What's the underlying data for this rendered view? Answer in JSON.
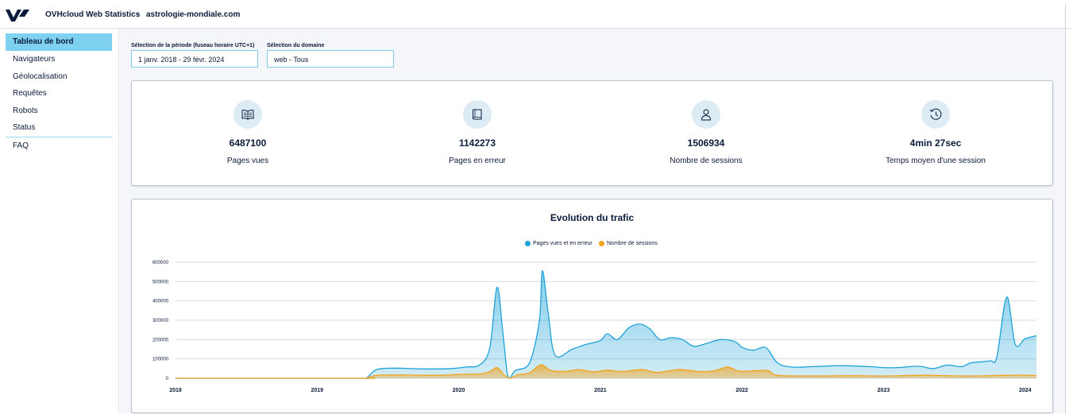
{
  "topbar": {
    "app_title": "OVHcloud Web Statistics",
    "separator": "-",
    "domain": "astrologie-mondiale.com"
  },
  "sidebar": {
    "items": [
      {
        "label": "Tableau de bord",
        "active": true
      },
      {
        "label": "Navigateurs",
        "active": false
      },
      {
        "label": "Géolocalisation",
        "active": false
      },
      {
        "label": "Requêtes",
        "active": false
      },
      {
        "label": "Robots",
        "active": false
      },
      {
        "label": "Status",
        "active": false
      },
      {
        "label": "FAQ",
        "active": false
      }
    ]
  },
  "filters": {
    "period_label": "Sélection de la période (fuseau horaire UTC+1)",
    "period_value": "1 janv. 2018 - 29 févr. 2024",
    "domain_label": "Sélection du domaine",
    "domain_value": "web - Tous"
  },
  "stats": [
    {
      "icon": "open-book-icon",
      "value": "6487100",
      "label": "Pages vues"
    },
    {
      "icon": "closed-book-icon",
      "value": "1142273",
      "label": "Pages en erreur"
    },
    {
      "icon": "person-icon",
      "value": "1506934",
      "label": "Nombre de sessions"
    },
    {
      "icon": "clock-history-icon",
      "value": "4min 27sec",
      "label": "Temps moyen d'une session"
    }
  ],
  "colors": {
    "accent": "#7fd1f0",
    "series_blue": "#1ea3d8",
    "series_orange": "#f2a21b"
  },
  "chart_data": {
    "type": "area",
    "title": "Evolution du trafic",
    "legend_position": "top-center",
    "grid": true,
    "ylim": [
      0,
      600000
    ],
    "yticks": [
      "0",
      "100000",
      "200000",
      "300000",
      "400000",
      "500000",
      "600000"
    ],
    "xticks": [
      "2018",
      "2019",
      "2020",
      "2021",
      "2022",
      "2023",
      "2024"
    ],
    "xlim": [
      2018.0,
      2024.08
    ],
    "series": [
      {
        "name": "Pages vues et en erreur",
        "color": "#1ea3d8",
        "points": [
          [
            2018.0,
            0
          ],
          [
            2019.3,
            0
          ],
          [
            2019.35,
            2000
          ],
          [
            2019.42,
            45000
          ],
          [
            2019.55,
            52000
          ],
          [
            2019.75,
            48000
          ],
          [
            2019.95,
            50000
          ],
          [
            2020.05,
            58000
          ],
          [
            2020.15,
            70000
          ],
          [
            2020.22,
            160000
          ],
          [
            2020.27,
            470000
          ],
          [
            2020.31,
            250000
          ],
          [
            2020.34,
            40000
          ],
          [
            2020.36,
            2000
          ],
          [
            2020.4,
            40000
          ],
          [
            2020.5,
            80000
          ],
          [
            2020.57,
            300000
          ],
          [
            2020.59,
            555000
          ],
          [
            2020.63,
            350000
          ],
          [
            2020.68,
            120000
          ],
          [
            2020.8,
            150000
          ],
          [
            2020.9,
            175000
          ],
          [
            2021.0,
            195000
          ],
          [
            2021.05,
            230000
          ],
          [
            2021.12,
            200000
          ],
          [
            2021.2,
            260000
          ],
          [
            2021.28,
            280000
          ],
          [
            2021.35,
            255000
          ],
          [
            2021.42,
            200000
          ],
          [
            2021.5,
            210000
          ],
          [
            2021.58,
            200000
          ],
          [
            2021.66,
            165000
          ],
          [
            2021.75,
            180000
          ],
          [
            2021.85,
            200000
          ],
          [
            2021.95,
            190000
          ],
          [
            2022.0,
            160000
          ],
          [
            2022.08,
            145000
          ],
          [
            2022.17,
            158000
          ],
          [
            2022.25,
            80000
          ],
          [
            2022.35,
            58000
          ],
          [
            2022.5,
            60000
          ],
          [
            2022.7,
            65000
          ],
          [
            2022.9,
            60000
          ],
          [
            2023.0,
            55000
          ],
          [
            2023.1,
            55000
          ],
          [
            2023.25,
            62000
          ],
          [
            2023.35,
            50000
          ],
          [
            2023.45,
            68000
          ],
          [
            2023.55,
            60000
          ],
          [
            2023.62,
            80000
          ],
          [
            2023.75,
            90000
          ],
          [
            2023.8,
            110000
          ],
          [
            2023.87,
            420000
          ],
          [
            2023.93,
            175000
          ],
          [
            2024.0,
            205000
          ],
          [
            2024.08,
            220000
          ]
        ]
      },
      {
        "name": "Nombre de sessions",
        "color": "#f2a21b",
        "points": [
          [
            2018.0,
            0
          ],
          [
            2019.3,
            0
          ],
          [
            2019.35,
            1000
          ],
          [
            2019.42,
            15000
          ],
          [
            2019.6,
            17000
          ],
          [
            2019.85,
            15000
          ],
          [
            2020.0,
            20000
          ],
          [
            2020.15,
            22000
          ],
          [
            2020.22,
            35000
          ],
          [
            2020.27,
            55000
          ],
          [
            2020.32,
            18000
          ],
          [
            2020.36,
            1000
          ],
          [
            2020.42,
            18000
          ],
          [
            2020.5,
            28000
          ],
          [
            2020.58,
            70000
          ],
          [
            2020.65,
            40000
          ],
          [
            2020.75,
            35000
          ],
          [
            2020.85,
            45000
          ],
          [
            2020.95,
            33000
          ],
          [
            2021.05,
            42000
          ],
          [
            2021.15,
            35000
          ],
          [
            2021.3,
            45000
          ],
          [
            2021.4,
            30000
          ],
          [
            2021.55,
            45000
          ],
          [
            2021.7,
            35000
          ],
          [
            2021.8,
            38000
          ],
          [
            2021.9,
            58000
          ],
          [
            2021.97,
            38000
          ],
          [
            2022.05,
            37000
          ],
          [
            2022.18,
            40000
          ],
          [
            2022.25,
            15000
          ],
          [
            2022.5,
            12000
          ],
          [
            2022.8,
            13000
          ],
          [
            2023.0,
            12000
          ],
          [
            2023.3,
            15000
          ],
          [
            2023.6,
            12000
          ],
          [
            2023.85,
            15000
          ],
          [
            2024.0,
            16000
          ],
          [
            2024.08,
            14000
          ]
        ]
      }
    ]
  }
}
